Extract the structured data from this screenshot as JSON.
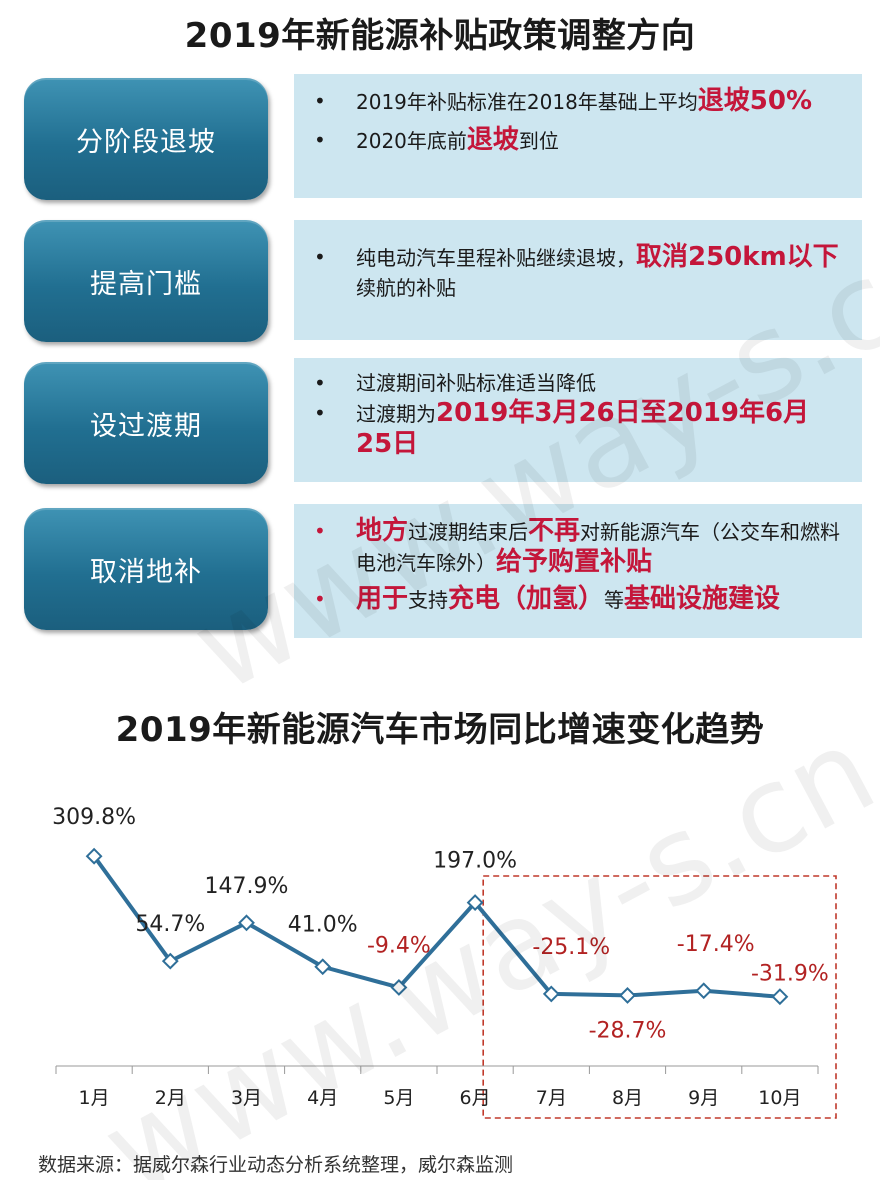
{
  "policy": {
    "title": "2019年新能源补贴政策调整方向",
    "rows": [
      {
        "label": "分阶段退坡",
        "bullets": [
          [
            {
              "t": "2019年补贴标准在2018年基础上平均",
              "hl": false
            },
            {
              "t": "退坡50%",
              "hl": true
            }
          ],
          [
            {
              "t": "2020年底前",
              "hl": false
            },
            {
              "t": "退坡",
              "hl": true
            },
            {
              "t": "到位",
              "hl": false
            }
          ]
        ]
      },
      {
        "label": "提高门槛",
        "bullets": [
          [
            {
              "t": "纯电动汽车里程补贴继续退坡，",
              "hl": false
            },
            {
              "t": "取消250km以下",
              "hl": true
            },
            {
              "t": "续航的补贴",
              "hl": false
            }
          ]
        ]
      },
      {
        "label": "设过渡期",
        "bullets": [
          [
            {
              "t": "过渡期间补贴标准适当降低",
              "hl": false
            }
          ],
          [
            {
              "t": "过渡期为",
              "hl": false
            },
            {
              "t": "2019年3月26日至2019年6月25日",
              "hl": true
            }
          ]
        ]
      },
      {
        "label": "取消地补",
        "bullets": [
          [
            {
              "t": "地方",
              "hl": true
            },
            {
              "t": "过渡期结束后",
              "hl": false
            },
            {
              "t": "不再",
              "hl": true
            },
            {
              "t": "对新能源汽车（公交车和燃料电池汽车除外）",
              "hl": false
            },
            {
              "t": "给予购置补贴",
              "hl": true
            }
          ],
          [
            {
              "t": "用于",
              "hl": true
            },
            {
              "t": "支持",
              "hl": false
            },
            {
              "t": "充电（加氢）",
              "hl": true
            },
            {
              "t": "等",
              "hl": false
            },
            {
              "t": "基础设施建设",
              "hl": true
            }
          ]
        ]
      }
    ]
  },
  "chart_data": {
    "type": "line",
    "title": "2019年新能源汽车市场同比增速变化趋势",
    "categories": [
      "1月",
      "2月",
      "3月",
      "4月",
      "5月",
      "6月",
      "7月",
      "8月",
      "9月",
      "10月"
    ],
    "values": [
      309.8,
      54.7,
      147.9,
      41.0,
      -9.4,
      197.0,
      -25.1,
      -28.7,
      -17.4,
      -31.9
    ],
    "labels": [
      "309.8%",
      "54.7%",
      "147.9%",
      "41.0%",
      "-9.4%",
      "197.0%",
      "-25.1%",
      "-28.7%",
      "-17.4%",
      "-31.9%"
    ],
    "line_color": "#2f6f99",
    "negative_label_color": "#b22222",
    "highlight_range": [
      "7月",
      "10月"
    ],
    "highlight_color": "#c0392b"
  },
  "source_note": "数据来源：据威尔森行业动态分析系统整理，威尔森监测",
  "watermark": "www.way-s.cn"
}
